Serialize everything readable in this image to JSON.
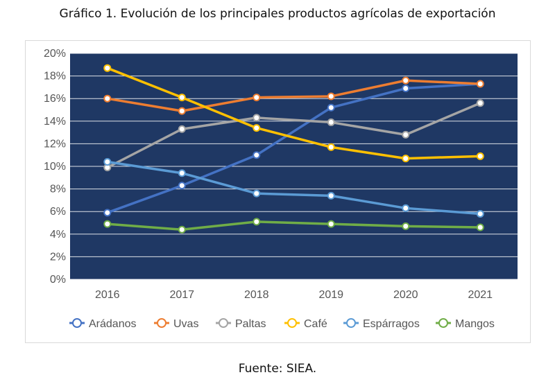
{
  "title": "Gráfico 1. Evolución de los principales productos agrícolas de exportación",
  "source": "Fuente: SIEA.",
  "chart_data": {
    "type": "line",
    "title": "",
    "xlabel": "",
    "ylabel": "",
    "ylim": [
      0,
      20
    ],
    "y_tick_format": "percent",
    "y_ticks": [
      0,
      2,
      4,
      6,
      8,
      10,
      12,
      14,
      16,
      18,
      20
    ],
    "grid": true,
    "legend_position": "bottom",
    "plot_background": "#1f3864",
    "categories": [
      "2016",
      "2017",
      "2018",
      "2019",
      "2020",
      "2021"
    ],
    "series": [
      {
        "name": "Arádanos",
        "color": "#4472c4",
        "values": [
          5.9,
          8.3,
          11.0,
          15.2,
          16.9,
          17.3
        ]
      },
      {
        "name": "Uvas",
        "color": "#ed7d31",
        "values": [
          16.0,
          14.9,
          16.1,
          16.2,
          17.6,
          17.3
        ]
      },
      {
        "name": "Paltas",
        "color": "#a5a5a5",
        "values": [
          9.9,
          13.3,
          14.3,
          13.9,
          12.8,
          15.6
        ]
      },
      {
        "name": "Café",
        "color": "#ffc000",
        "values": [
          18.7,
          16.1,
          13.4,
          11.7,
          10.7,
          10.9
        ]
      },
      {
        "name": "Espárragos",
        "color": "#5b9bd5",
        "values": [
          10.4,
          9.4,
          7.6,
          7.4,
          6.3,
          5.8
        ]
      },
      {
        "name": "Mangos",
        "color": "#70ad47",
        "values": [
          4.9,
          4.4,
          5.1,
          4.9,
          4.7,
          4.6
        ]
      }
    ]
  }
}
